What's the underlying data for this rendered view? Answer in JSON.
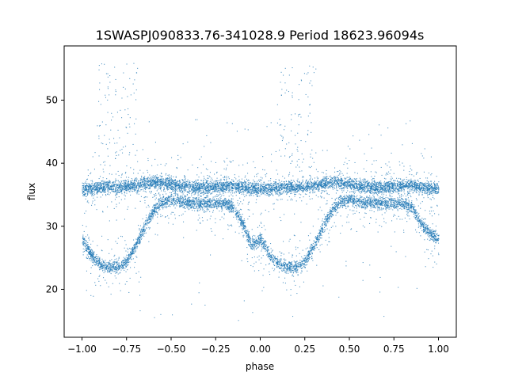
{
  "chart_data": {
    "type": "scatter",
    "title": "1SWASPJ090833.76-341028.9 Period 18623.96094s",
    "xlabel": "phase",
    "ylabel": "flux",
    "xlim": [
      -1.1,
      1.1
    ],
    "ylim": [
      12.4,
      58.6
    ],
    "x_ticks": [
      -1.0,
      -0.75,
      -0.5,
      -0.25,
      0.0,
      0.25,
      0.5,
      0.75,
      1.0
    ],
    "x_tick_labels": [
      "−1.00",
      "−0.75",
      "−0.50",
      "−0.25",
      "0.00",
      "0.25",
      "0.50",
      "0.75",
      "1.00"
    ],
    "y_ticks": [
      20,
      30,
      40,
      50
    ],
    "y_tick_labels": [
      "20",
      "30",
      "40",
      "50"
    ],
    "grid": false,
    "marker_color": "#1f77b4",
    "series": [
      {
        "description_points": "folded light curve, phase vs flux",
        "x": [
          -1.0,
          -0.95,
          -0.9,
          -0.85,
          -0.8,
          -0.75,
          -0.7,
          -0.65,
          -0.6,
          -0.55,
          -0.5,
          -0.45,
          -0.4,
          -0.35,
          -0.3,
          -0.25,
          -0.2,
          -0.15,
          -0.1,
          -0.05,
          0.0,
          0.05,
          0.1,
          0.15,
          0.2,
          0.25,
          0.3,
          0.35,
          0.4,
          0.45,
          0.5,
          0.55,
          0.6,
          0.65,
          0.7,
          0.75,
          0.8,
          0.85,
          0.9,
          0.95,
          1.0
        ],
        "y_upper_band": [
          36,
          36,
          36.2,
          36.3,
          36.2,
          36.3,
          36.5,
          36.8,
          37,
          37,
          36.8,
          36.5,
          36.3,
          36.2,
          36.3,
          36.4,
          36.5,
          36.5,
          36.3,
          36,
          36,
          36,
          36.2,
          36.3,
          36.2,
          36.3,
          36.5,
          36.8,
          37,
          37,
          36.8,
          36.5,
          36.3,
          36.2,
          36.3,
          36.4,
          36.5,
          36.5,
          36.3,
          36,
          36
        ],
        "y_lower_band": [
          28,
          25.5,
          24,
          23.6,
          23.6,
          24.5,
          27,
          30,
          32.5,
          34,
          34.3,
          34,
          33.8,
          33.7,
          33.7,
          33.8,
          33.7,
          33,
          30.5,
          27,
          28,
          25.5,
          24,
          23.6,
          23.6,
          24.5,
          27,
          30,
          32.5,
          34,
          34.3,
          34,
          33.8,
          33.7,
          33.7,
          33.8,
          33.7,
          33,
          30.5,
          29,
          28
        ]
      }
    ]
  }
}
